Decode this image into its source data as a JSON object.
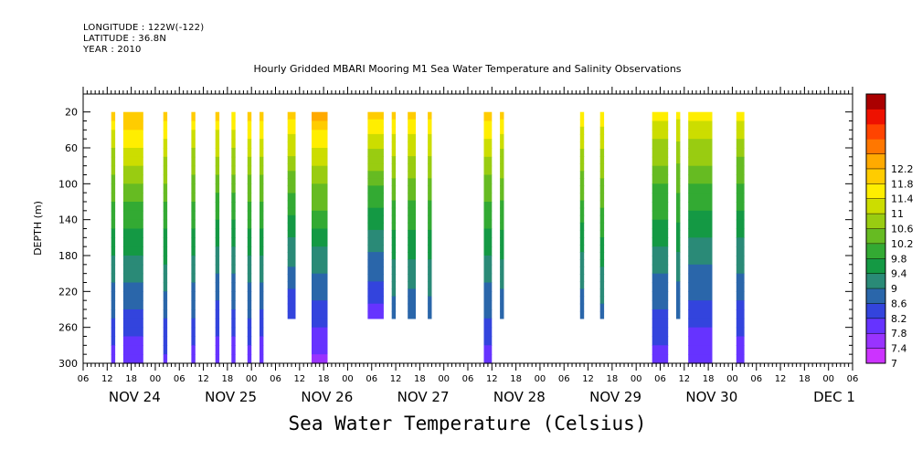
{
  "header": {
    "longitude": "LONGITUDE : 122W(-122)",
    "latitude": "LATITUDE : 36.8N",
    "year": "YEAR : 2010"
  },
  "chart_data": {
    "type": "heatmap",
    "title": "Hourly Gridded MBARI Mooring M1 Sea Water Temperature and Salinity Observations",
    "xlabel": "Sea Water Temperature (Celsius)",
    "ylabel": "DEPTH (m)",
    "xlim": [
      "2010-11-23T06:00",
      "2010-12-01T06:00"
    ],
    "ylim": [
      300,
      0
    ],
    "y_ticks": [
      20,
      60,
      100,
      140,
      180,
      220,
      260,
      300
    ],
    "x_hour_ticks": [
      "06",
      "12",
      "18",
      "00",
      "06",
      "12",
      "18",
      "00",
      "06",
      "12",
      "18",
      "00",
      "06",
      "12",
      "18",
      "00",
      "06",
      "12",
      "18",
      "00",
      "06",
      "12",
      "18",
      "00",
      "06",
      "12",
      "18",
      "00",
      "06",
      "12",
      "18",
      "00",
      "06"
    ],
    "x_day_labels": [
      "NOV 24",
      "NOV 25",
      "NOV 26",
      "NOV 27",
      "NOV 28",
      "NOV 29",
      "NOV 30",
      "DEC 1"
    ],
    "colorbar": {
      "levels": [
        7,
        7.4,
        7.8,
        8.2,
        8.6,
        9,
        9.4,
        9.8,
        10.2,
        10.6,
        11,
        11.4,
        11.8,
        12.2
      ],
      "labels": [
        "7",
        "7.4",
        "7.8",
        "8.2",
        "8.6",
        "9",
        "9.4",
        "9.8",
        "10.2",
        "10.6",
        "11",
        "11.4",
        "11.8",
        "12.2"
      ],
      "colors": [
        "#cc33ff",
        "#9933ff",
        "#6633ff",
        "#3344dd",
        "#2a66aa",
        "#2a8a77",
        "#149944",
        "#33aa33",
        "#66bb22",
        "#99cc11",
        "#ccdd00",
        "#ffee00",
        "#ffcc00",
        "#ffaa00",
        "#ff7700",
        "#ff4400",
        "#ee1100",
        "#aa0000"
      ]
    },
    "segments": [
      {
        "start": "2010-11-23T13:00",
        "end": "2010-11-23T14:00",
        "max_depth": 300,
        "temp_top": 11.6,
        "temp_bottom": 7.6
      },
      {
        "start": "2010-11-23T16:00",
        "end": "2010-11-23T21:00",
        "max_depth": 300,
        "temp_top": 12.0,
        "temp_bottom": 7.4
      },
      {
        "start": "2010-11-24T02:00",
        "end": "2010-11-24T03:00",
        "max_depth": 300,
        "temp_top": 11.7,
        "temp_bottom": 7.7
      },
      {
        "start": "2010-11-24T09:00",
        "end": "2010-11-24T10:00",
        "max_depth": 300,
        "temp_top": 11.6,
        "temp_bottom": 7.6
      },
      {
        "start": "2010-11-24T15:00",
        "end": "2010-11-24T16:00",
        "max_depth": 300,
        "temp_top": 11.7,
        "temp_bottom": 7.4
      },
      {
        "start": "2010-11-24T19:00",
        "end": "2010-11-24T20:00",
        "max_depth": 300,
        "temp_top": 11.6,
        "temp_bottom": 7.5
      },
      {
        "start": "2010-11-24T23:00",
        "end": "2010-11-25T00:00",
        "max_depth": 300,
        "temp_top": 11.7,
        "temp_bottom": 7.6
      },
      {
        "start": "2010-11-25T02:00",
        "end": "2010-11-25T03:00",
        "max_depth": 300,
        "temp_top": 11.7,
        "temp_bottom": 7.5
      },
      {
        "start": "2010-11-25T09:00",
        "end": "2010-11-25T11:00",
        "max_depth": 250,
        "temp_top": 11.8,
        "temp_bottom": 7.8
      },
      {
        "start": "2010-11-25T15:00",
        "end": "2010-11-25T19:00",
        "max_depth": 300,
        "temp_top": 12.2,
        "temp_bottom": 7.2
      },
      {
        "start": "2010-11-26T05:00",
        "end": "2010-11-26T09:00",
        "max_depth": 250,
        "temp_top": 11.8,
        "temp_bottom": 7.6
      },
      {
        "start": "2010-11-26T11:00",
        "end": "2010-11-26T12:00",
        "max_depth": 250,
        "temp_top": 11.6,
        "temp_bottom": 8.3
      },
      {
        "start": "2010-11-26T15:00",
        "end": "2010-11-26T17:00",
        "max_depth": 250,
        "temp_top": 11.7,
        "temp_bottom": 8.2
      },
      {
        "start": "2010-11-26T20:00",
        "end": "2010-11-26T21:00",
        "max_depth": 250,
        "temp_top": 11.6,
        "temp_bottom": 8.3
      },
      {
        "start": "2010-11-27T10:00",
        "end": "2010-11-27T12:00",
        "max_depth": 300,
        "temp_top": 11.7,
        "temp_bottom": 7.6
      },
      {
        "start": "2010-11-27T14:00",
        "end": "2010-11-27T15:00",
        "max_depth": 250,
        "temp_top": 11.6,
        "temp_bottom": 8.2
      },
      {
        "start": "2010-11-28T10:00",
        "end": "2010-11-28T11:00",
        "max_depth": 250,
        "temp_top": 11.5,
        "temp_bottom": 8.2
      },
      {
        "start": "2010-11-28T15:00",
        "end": "2010-11-28T16:00",
        "max_depth": 250,
        "temp_top": 11.5,
        "temp_bottom": 8.4
      },
      {
        "start": "2010-11-29T04:00",
        "end": "2010-11-29T08:00",
        "max_depth": 300,
        "temp_top": 11.3,
        "temp_bottom": 7.6
      },
      {
        "start": "2010-11-29T10:00",
        "end": "2010-11-29T11:00",
        "max_depth": 250,
        "temp_top": 11.3,
        "temp_bottom": 8.2
      },
      {
        "start": "2010-11-29T13:00",
        "end": "2010-11-29T19:00",
        "max_depth": 300,
        "temp_top": 11.4,
        "temp_bottom": 7.4
      },
      {
        "start": "2010-11-30T01:00",
        "end": "2010-11-30T03:00",
        "max_depth": 300,
        "temp_top": 11.3,
        "temp_bottom": 7.5
      }
    ]
  }
}
